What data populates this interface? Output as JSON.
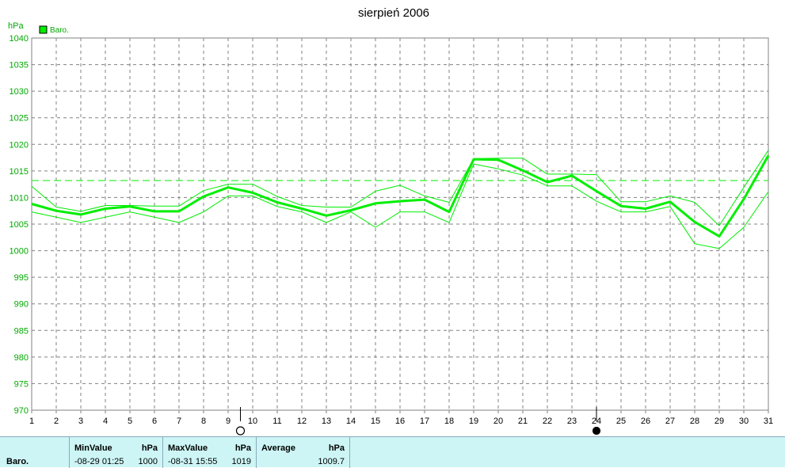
{
  "chart_data": {
    "type": "line",
    "title": "sierpień 2006",
    "ylabel": "hPa",
    "ylim": [
      970,
      1040
    ],
    "yticks": [
      970,
      975,
      980,
      985,
      990,
      995,
      1000,
      1005,
      1010,
      1015,
      1020,
      1025,
      1030,
      1035,
      1040
    ],
    "x": [
      1,
      2,
      3,
      4,
      5,
      6,
      7,
      8,
      9,
      10,
      11,
      12,
      13,
      14,
      15,
      16,
      17,
      18,
      19,
      20,
      21,
      22,
      23,
      24,
      25,
      26,
      27,
      28,
      29,
      30,
      31
    ],
    "legend": {
      "label": "Baro.",
      "placement": "top-left"
    },
    "series": [
      {
        "role": "average",
        "values": [
          1008.8,
          1007.5,
          1006.8,
          1007.9,
          1008.3,
          1007.4,
          1007.4,
          1010.2,
          1011.9,
          1010.9,
          1009.1,
          1007.9,
          1006.6,
          1007.6,
          1008.9,
          1009.3,
          1009.6,
          1007.3,
          1017.2,
          1017.1,
          1015.1,
          1012.9,
          1014.1,
          1011.2,
          1008.4,
          1007.9,
          1009.2,
          1005.4,
          1002.7,
          1009.7,
          1017.9
        ]
      },
      {
        "role": "max",
        "values": [
          1012.1,
          1008.2,
          1007.4,
          1008.5,
          1008.5,
          1008.4,
          1008.4,
          1011.3,
          1012.5,
          1012.5,
          1010.2,
          1008.5,
          1008.2,
          1008.2,
          1011.2,
          1012.3,
          1010.3,
          1009.1,
          1017.3,
          1017.4,
          1017.4,
          1014.4,
          1014.4,
          1014.3,
          1009.2,
          1009.2,
          1010.3,
          1009.1,
          1004.7,
          1011.9,
          1018.9
        ]
      },
      {
        "role": "min",
        "values": [
          1007.3,
          1006.3,
          1005.3,
          1006.3,
          1007.3,
          1006.3,
          1005.3,
          1007.3,
          1010.3,
          1010.3,
          1008.3,
          1007.3,
          1005.3,
          1007.3,
          1004.4,
          1007.3,
          1007.3,
          1005.3,
          1016.3,
          1015.4,
          1014.2,
          1012.2,
          1012.2,
          1009.3,
          1007.3,
          1007.3,
          1008.3,
          1001.3,
          1000.4,
          1004.4,
          1011.1
        ]
      }
    ],
    "reference_line": {
      "value": 1013.2,
      "style": "dashed"
    },
    "moon_phases": [
      {
        "x": 9.5,
        "phase": "full-moon-icon"
      },
      {
        "x": 24,
        "phase": "new-moon-icon"
      }
    ],
    "grid": true,
    "colors": {
      "series": "#00ee00",
      "grid": "#808080",
      "axis": "#808080",
      "ytick": "#00aa00"
    }
  },
  "stats": {
    "row_label": "Baro.",
    "min": {
      "header": "MinValue",
      "unit": "hPa",
      "when": "-08-29  01:25",
      "value": "1000"
    },
    "max": {
      "header": "MaxValue",
      "unit": "hPa",
      "when": "-08-31  15:55",
      "value": "1019"
    },
    "avg": {
      "header": "Average",
      "unit": "hPa",
      "value": "1009.7"
    }
  }
}
